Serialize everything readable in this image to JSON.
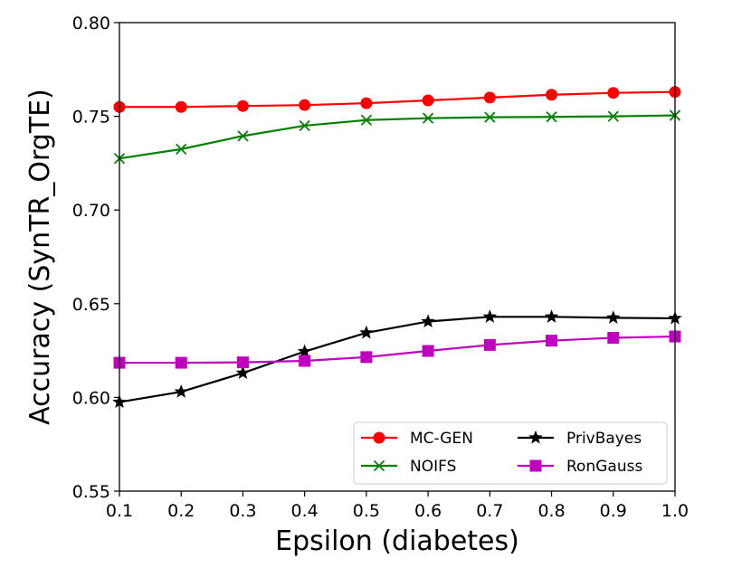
{
  "chart_data": {
    "type": "line",
    "title": "",
    "xlabel": "Epsilon (diabetes)",
    "ylabel": "Accuracy (SynTR_OrgTE)",
    "x": [
      0.1,
      0.2,
      0.3,
      0.4,
      0.5,
      0.6,
      0.7,
      0.8,
      0.9,
      1.0
    ],
    "xlim": [
      0.1,
      1.0
    ],
    "ylim": [
      0.55,
      0.8
    ],
    "x_ticks": [
      "0.1",
      "0.2",
      "0.3",
      "0.4",
      "0.5",
      "0.6",
      "0.7",
      "0.8",
      "0.9",
      "1.0"
    ],
    "y_ticks": [
      "0.55",
      "0.60",
      "0.65",
      "0.70",
      "0.75",
      "0.80"
    ],
    "grid": false,
    "legend_position": "bottom-right",
    "series": [
      {
        "name": "MC-GEN",
        "color": "#ff0000",
        "marker": "circle",
        "values": [
          0.755,
          0.755,
          0.7555,
          0.756,
          0.757,
          0.7585,
          0.76,
          0.7615,
          0.7625,
          0.763
        ]
      },
      {
        "name": "NOIFS",
        "color": "#008000",
        "marker": "x",
        "values": [
          0.7275,
          0.7325,
          0.7395,
          0.745,
          0.748,
          0.749,
          0.7495,
          0.7497,
          0.75,
          0.7505
        ]
      },
      {
        "name": "PrivBayes",
        "color": "#000000",
        "marker": "star",
        "values": [
          0.5975,
          0.603,
          0.613,
          0.6245,
          0.6345,
          0.6405,
          0.643,
          0.643,
          0.6425,
          0.6422
        ]
      },
      {
        "name": "RonGauss",
        "color": "#bf00bf",
        "marker": "square",
        "values": [
          0.6185,
          0.6185,
          0.6187,
          0.6195,
          0.6215,
          0.6248,
          0.628,
          0.6303,
          0.6318,
          0.6325
        ]
      }
    ]
  }
}
